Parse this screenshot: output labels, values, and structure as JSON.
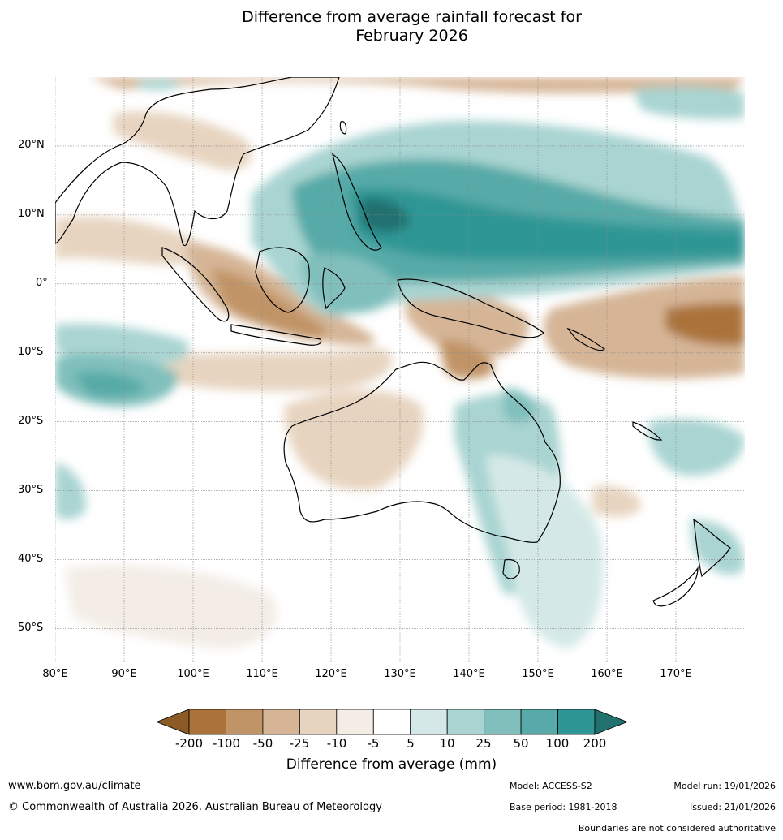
{
  "title": {
    "line1": "Difference from average rainfall forecast for",
    "line2": "February 2026"
  },
  "axes": {
    "lat_labels": [
      "20°N",
      "10°N",
      "0°",
      "10°S",
      "20°S",
      "30°S",
      "40°S",
      "50°S"
    ],
    "lon_labels": [
      "80°E",
      "90°E",
      "100°E",
      "110°E",
      "120°E",
      "130°E",
      "140°E",
      "150°E",
      "160°E",
      "170°E"
    ],
    "lat_values": [
      20,
      10,
      0,
      -10,
      -20,
      -30,
      -40,
      -50
    ],
    "lon_values": [
      80,
      90,
      100,
      110,
      120,
      130,
      140,
      150,
      160,
      170
    ],
    "lon_range": [
      80,
      180
    ],
    "lat_range": [
      -55,
      30
    ]
  },
  "legend": {
    "title": "Difference from average (mm)",
    "tick_labels": [
      "-200",
      "-100",
      "-50",
      "-25",
      "-10",
      "-5",
      "5",
      "10",
      "25",
      "50",
      "100",
      "200"
    ],
    "colors": [
      "#8c5a24",
      "#ab733a",
      "#c19468",
      "#d5b596",
      "#e7d4c0",
      "#f3ede6",
      "#ffffff",
      "#d4e9e7",
      "#a9d4d1",
      "#80bfbc",
      "#57aaa7",
      "#2e9694",
      "#21716f"
    ]
  },
  "footer": {
    "website": "www.bom.gov.au/climate",
    "copyright": "© Commonwealth of Australia 2026, Australian Bureau of Meteorology",
    "model": "Model: ACCESS-S2",
    "base_period": "Base period: 1981-2018",
    "model_run": "Model run: 19/01/2026",
    "issued": "Issued: 21/01/2026",
    "disclaimer": "Boundaries are not considered authoritative"
  }
}
